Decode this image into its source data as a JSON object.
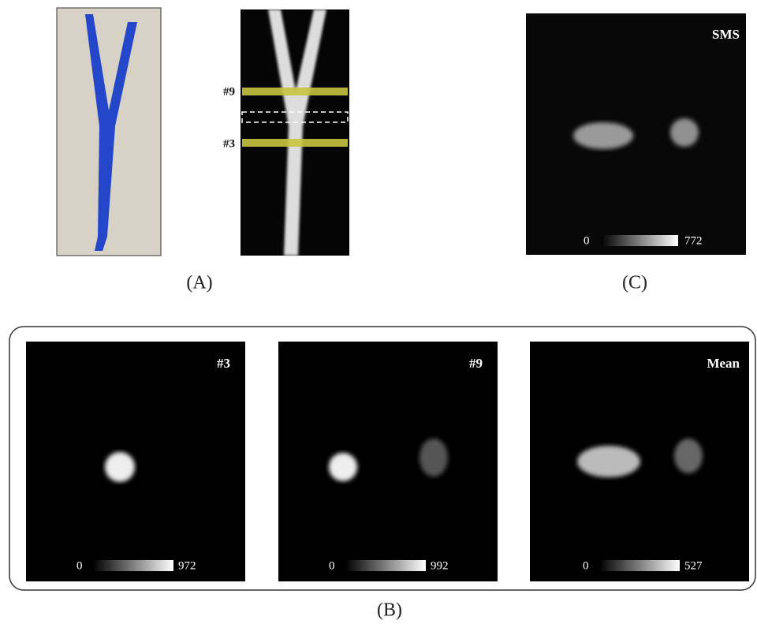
{
  "panel_a": {
    "label": "(A)",
    "slices": [
      {
        "label": "#9"
      },
      {
        "label": "#3"
      }
    ]
  },
  "panel_b": {
    "label": "(B)",
    "images": [
      {
        "label": "#3",
        "colorbar": {
          "min": 0,
          "max": 972
        }
      },
      {
        "label": "#9",
        "colorbar": {
          "min": 0,
          "max": 992
        }
      },
      {
        "label": "Mean",
        "colorbar": {
          "min": 0,
          "max": 527
        }
      }
    ]
  },
  "panel_c": {
    "label": "(C)",
    "image": {
      "label": "SMS",
      "colorbar": {
        "min": 0,
        "max": 772
      }
    }
  }
}
